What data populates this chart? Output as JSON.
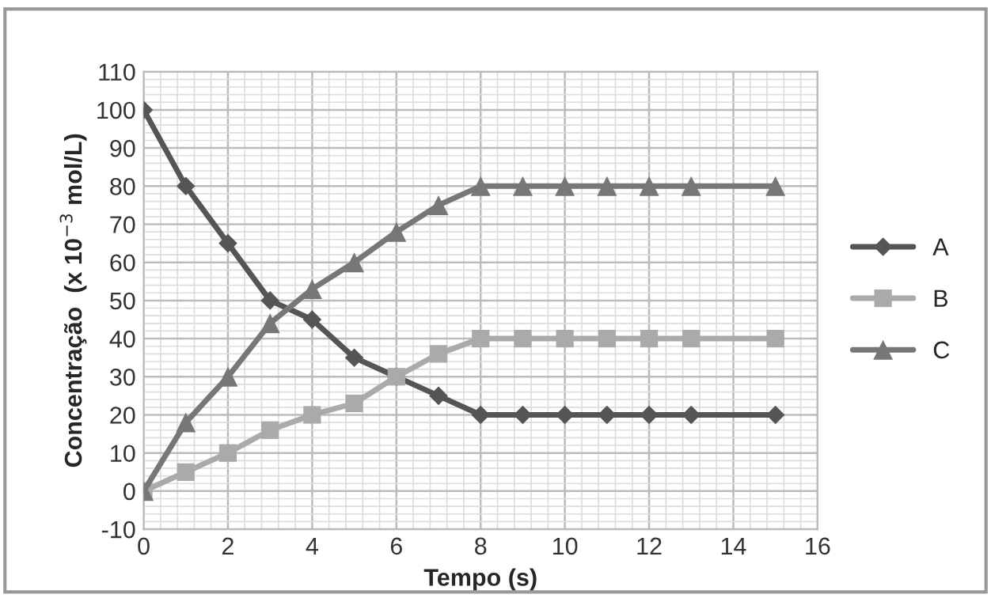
{
  "chart_data": {
    "type": "line",
    "x": [
      0,
      1,
      2,
      3,
      4,
      5,
      6,
      7,
      8,
      9,
      10,
      11,
      12,
      13,
      15
    ],
    "series": [
      {
        "name": "A",
        "color": "#555555",
        "marker": "diamond",
        "values": [
          100,
          80,
          65,
          50,
          45,
          35,
          30,
          25,
          20,
          20,
          20,
          20,
          20,
          20,
          20
        ]
      },
      {
        "name": "B",
        "color": "#aaaaaa",
        "marker": "square",
        "values": [
          0,
          5,
          10,
          16,
          20,
          23,
          30,
          36,
          40,
          40,
          40,
          40,
          40,
          40,
          40
        ]
      },
      {
        "name": "C",
        "color": "#777777",
        "marker": "triangle",
        "values": [
          0,
          18,
          30,
          44,
          53,
          60,
          68,
          75,
          80,
          80,
          80,
          80,
          80,
          80,
          80
        ]
      }
    ],
    "xlabel": "Tempo (s)",
    "ylabel": "Concentração  (x 10$^{−3}$ mol/L)",
    "xlim": [
      0,
      16
    ],
    "xticks": [
      0,
      2,
      4,
      6,
      8,
      10,
      12,
      14,
      16
    ],
    "ylim": [
      -10,
      110
    ],
    "yticks": [
      -10,
      0,
      10,
      20,
      30,
      40,
      50,
      60,
      70,
      80,
      90,
      100,
      110
    ],
    "grid": true,
    "legend": "right",
    "line_style": "solid"
  }
}
